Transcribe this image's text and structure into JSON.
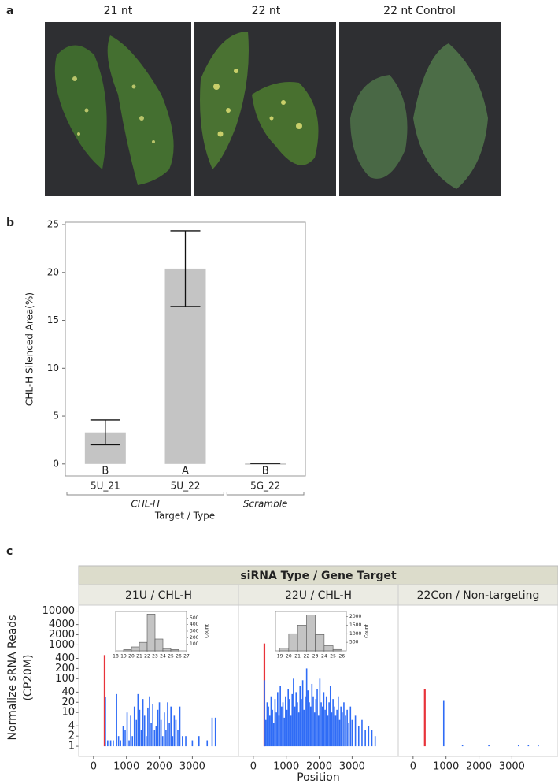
{
  "panel_labels": [
    "a",
    "b",
    "c"
  ],
  "photos": {
    "titles": [
      "21 nt",
      "22 nt",
      "22 nt Control"
    ]
  },
  "chart_data": [
    {
      "type": "bar",
      "categories": [
        "5U_21",
        "5U_22",
        "5G_22"
      ],
      "values": [
        3.3,
        20.4,
        0.05
      ],
      "errors": [
        1.3,
        3.95,
        0
      ],
      "letters": [
        "B",
        "A",
        "B"
      ],
      "groups": [
        {
          "label": "CHL-H",
          "size": 2
        },
        {
          "label": "Scramble",
          "size": 1
        }
      ],
      "color": "#c4c4c4",
      "y_label": "CHL-H Silenced Area(%)",
      "x_label": "Target / Type",
      "ylim": [
        -1.25,
        25.25
      ],
      "yticks": [
        0,
        5,
        10,
        15,
        20,
        25
      ]
    },
    {
      "type": "needle",
      "title": "siRNA Type / Gene Target",
      "y_label": [
        "Normalize sRNA Reads",
        "(CP20M)"
      ],
      "x_label": "Position",
      "log_y": true,
      "ylim": [
        0.5,
        15000
      ],
      "yticks": [
        1,
        2,
        4,
        10,
        20,
        40,
        100,
        200,
        400,
        1000,
        2000,
        4000,
        10000
      ],
      "xlim": [
        -450,
        4400
      ],
      "xticks": [
        0,
        1000,
        2000,
        3000
      ],
      "panels": [
        {
          "title": "21U / CHL-H",
          "series": [
            {
              "color": "#e8333a",
              "x": [
                330
              ],
              "values": [
                500
              ]
            },
            {
              "color": "#2f6cf6",
              "x": [
                360,
                430,
                520,
                600,
                700,
                760,
                820,
                900,
                960,
                1020,
                1080,
                1130,
                1180,
                1240,
                1300,
                1350,
                1400,
                1450,
                1500,
                1550,
                1600,
                1650,
                1700,
                1750,
                1800,
                1850,
                1900,
                1950,
                2000,
                2050,
                2100,
                2150,
                2200,
                2250,
                2300,
                2350,
                2400,
                2450,
                2500,
                2560,
                2620,
                2700,
                2800,
                3000,
                3200,
                3450,
                3600,
                3700
              ],
              "values": [
                28,
                1.5,
                1.5,
                1.5,
                35,
                2,
                1.5,
                4,
                3,
                10,
                1.5,
                8,
                2,
                15,
                6,
                35,
                12,
                3,
                25,
                8,
                2,
                14,
                30,
                5,
                18,
                3,
                4,
                12,
                20,
                6,
                2,
                10,
                3,
                20,
                5,
                15,
                2,
                8,
                6,
                3,
                15,
                2,
                2,
                1.5,
                2,
                1.5,
                7,
                7
              ]
            }
          ],
          "inset": {
            "type": "histogram",
            "y_label": "Count",
            "color": "#c4c4c4",
            "bins": [
              19,
              20,
              21,
              22,
              23,
              24,
              25,
              26
            ],
            "counts": [
              20,
              60,
              130,
              560,
              180,
              35,
              20
            ],
            "xlim": [
              18,
              27
            ],
            "xticks": [
              18,
              19,
              20,
              21,
              22,
              23,
              24,
              25,
              26,
              27
            ],
            "ylim": [
              0,
              600
            ],
            "yticks": [
              100,
              200,
              300,
              400,
              500
            ]
          }
        },
        {
          "title": "22U / CHL-H",
          "series": [
            {
              "color": "#e8333a",
              "x": [
                330
              ],
              "values": [
                1100
              ]
            },
            {
              "color": "#2f6cf6",
              "x": [
                340,
                380,
                420,
                460,
                500,
                540,
                580,
                620,
                660,
                700,
                740,
                780,
                820,
                860,
                900,
                940,
                980,
                1020,
                1060,
                1100,
                1140,
                1180,
                1220,
                1260,
                1300,
                1340,
                1380,
                1420,
                1460,
                1500,
                1540,
                1580,
                1620,
                1660,
                1700,
                1740,
                1780,
                1820,
                1860,
                1900,
                1940,
                1980,
                2020,
                2060,
                2100,
                2140,
                2180,
                2220,
                2260,
                2300,
                2340,
                2380,
                2420,
                2460,
                2500,
                2540,
                2580,
                2620,
                2660,
                2700,
                2750,
                2800,
                2850,
                2900,
                2950,
                3000,
                3100,
                3200,
                3300,
                3400,
                3500,
                3600,
                3700
              ],
              "values": [
                90,
                6,
                20,
                15,
                8,
                30,
                12,
                5,
                25,
                10,
                40,
                8,
                60,
                15,
                20,
                7,
                30,
                12,
                50,
                25,
                8,
                35,
                100,
                15,
                40,
                20,
                10,
                60,
                25,
                90,
                12,
                30,
                200,
                45,
                20,
                15,
                70,
                30,
                10,
                25,
                50,
                8,
                100,
                20,
                15,
                40,
                12,
                30,
                8,
                20,
                60,
                10,
                25,
                15,
                8,
                12,
                30,
                6,
                15,
                10,
                20,
                8,
                12,
                5,
                15,
                6,
                8,
                4,
                6,
                3,
                4,
                3,
                2
              ]
            }
          ],
          "inset": {
            "type": "histogram",
            "y_label": "Count",
            "color": "#c4c4c4",
            "bins": [
              19,
              20,
              21,
              22,
              23,
              24,
              25,
              26
            ],
            "counts": [
              150,
              1000,
              1500,
              2100,
              950,
              300,
              80
            ],
            "xlim": [
              18.5,
              26.5
            ],
            "xticks": [
              19,
              20,
              21,
              22,
              23,
              24,
              25,
              26
            ],
            "ylim": [
              0,
              2300
            ],
            "yticks": [
              500,
              1000,
              1500,
              2000
            ]
          }
        },
        {
          "title": "22Con / Non-targeting",
          "series": [
            {
              "color": "#e8333a",
              "x": [
                350
              ],
              "values": [
                50
              ]
            },
            {
              "color": "#2f6cf6",
              "x": [
                930,
                1500,
                2300,
                3200,
                3500,
                3800
              ],
              "values": [
                22,
                1.1,
                1.1,
                1.1,
                1.1,
                1.1
              ]
            }
          ]
        }
      ]
    }
  ]
}
